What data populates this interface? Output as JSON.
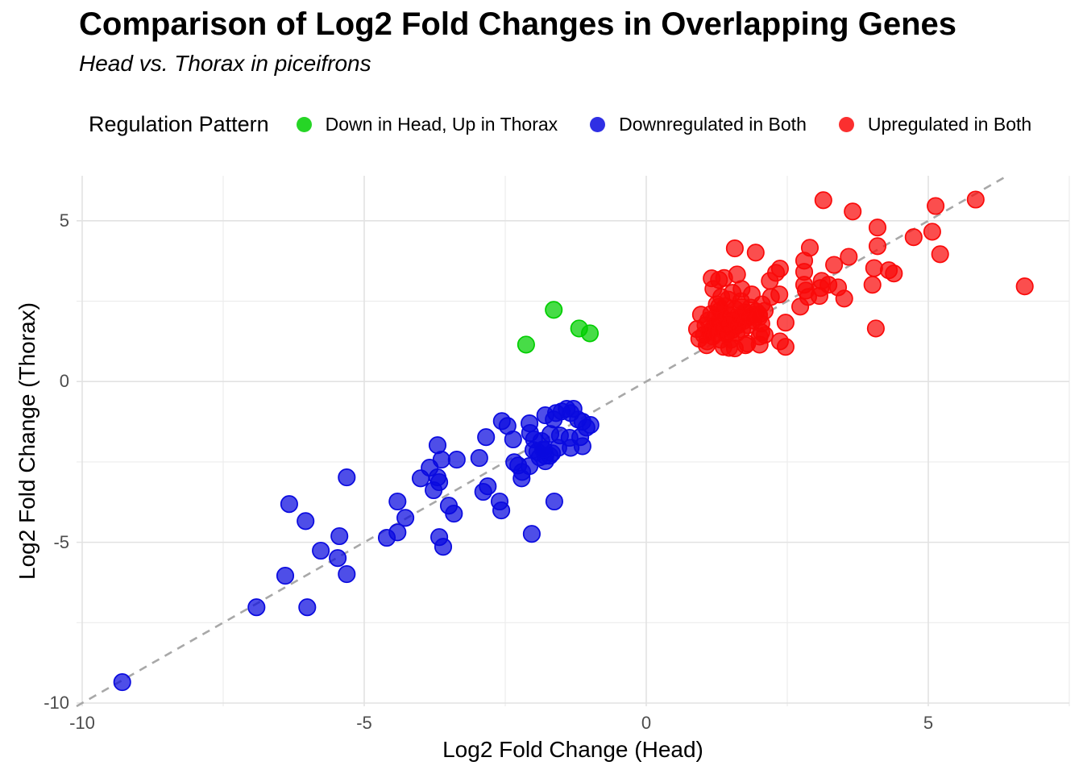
{
  "chart_data": {
    "type": "scatter",
    "title": "Comparison of Log2 Fold Changes in Overlapping Genes",
    "subtitle": "Head vs. Thorax in piceifrons",
    "xlabel": "Log2 Fold Change (Head)",
    "ylabel": "Log2 Fold Change (Thorax)",
    "legend_title": "Regulation Pattern",
    "legend_position": "top",
    "xlim": [
      -10.1,
      7.5
    ],
    "ylim": [
      -10.1,
      6.4
    ],
    "xticks": [
      -10,
      -5,
      0,
      5
    ],
    "yticks": [
      -10,
      -5,
      0,
      5
    ],
    "minor_xticks": [
      -7.5,
      -2.5,
      2.5,
      7.5
    ],
    "minor_yticks": [
      -7.5,
      -2.5,
      2.5
    ],
    "grid": true,
    "identity_line": {
      "style": "dashed",
      "color": "#a8a8a8"
    },
    "style": {
      "major_grid_color": "#e2e2e2",
      "minor_grid_color": "#ececec",
      "tick_label_color": "#4d4d4d",
      "background": "#ffffff",
      "point_radius": 10.2,
      "point_fill_opacity": 0.72
    },
    "series": [
      {
        "name": "Down in Head, Up in Thorax",
        "color": "#00ce00",
        "points": [
          [
            -1.64,
            2.23
          ],
          [
            -2.13,
            1.15
          ],
          [
            -1.19,
            1.65
          ],
          [
            -1.0,
            1.5
          ]
        ]
      },
      {
        "name": "Downregulated in Both",
        "color": "#0a0adf",
        "points": [
          [
            -9.29,
            -9.35
          ],
          [
            -6.91,
            -7.02
          ],
          [
            -6.4,
            -6.04
          ],
          [
            -6.01,
            -7.02
          ],
          [
            -5.31,
            -5.99
          ],
          [
            -5.31,
            -2.98
          ],
          [
            -6.33,
            -3.81
          ],
          [
            -6.04,
            -4.34
          ],
          [
            -5.44,
            -4.81
          ],
          [
            -5.77,
            -5.26
          ],
          [
            -5.47,
            -5.49
          ],
          [
            -4.41,
            -3.73
          ],
          [
            -4.27,
            -4.24
          ],
          [
            -4.41,
            -4.69
          ],
          [
            -4.6,
            -4.86
          ],
          [
            -4.0,
            -3.01
          ],
          [
            -3.84,
            -2.68
          ],
          [
            -3.7,
            -2.98
          ],
          [
            -3.77,
            -3.38
          ],
          [
            -3.5,
            -3.86
          ],
          [
            -3.41,
            -4.11
          ],
          [
            -3.67,
            -4.84
          ],
          [
            -3.6,
            -5.14
          ],
          [
            -3.7,
            -1.98
          ],
          [
            -3.63,
            -2.43
          ],
          [
            -3.36,
            -2.43
          ],
          [
            -3.67,
            -3.13
          ],
          [
            -2.96,
            -2.38
          ],
          [
            -2.84,
            -1.73
          ],
          [
            -2.81,
            -3.26
          ],
          [
            -2.34,
            -2.51
          ],
          [
            -2.07,
            -2.63
          ],
          [
            -2.21,
            -3.01
          ],
          [
            -1.79,
            -2.31
          ],
          [
            -1.67,
            -2.23
          ],
          [
            -2.89,
            -3.43
          ],
          [
            -2.6,
            -3.73
          ],
          [
            -2.57,
            -4.01
          ],
          [
            -1.63,
            -3.73
          ],
          [
            -2.03,
            -4.74
          ],
          [
            -2.56,
            -1.23
          ],
          [
            -2.46,
            -1.38
          ],
          [
            -2.36,
            -1.8
          ],
          [
            -2.27,
            -2.61
          ],
          [
            -2.07,
            -1.3
          ],
          [
            -2.06,
            -1.6
          ],
          [
            -1.99,
            -1.8
          ],
          [
            -2.2,
            -2.81
          ],
          [
            -1.93,
            -2.18
          ],
          [
            -1.81,
            -2.13
          ],
          [
            -1.79,
            -1.05
          ],
          [
            -1.64,
            -1.18
          ],
          [
            -1.6,
            -0.98
          ],
          [
            -1.5,
            -0.93
          ],
          [
            -1.41,
            -0.85
          ],
          [
            -1.34,
            -0.98
          ],
          [
            -1.29,
            -0.85
          ],
          [
            -1.21,
            -1.18
          ],
          [
            -1.13,
            -1.25
          ],
          [
            -1.06,
            -1.43
          ],
          [
            -0.99,
            -1.35
          ],
          [
            -1.17,
            -1.73
          ],
          [
            -1.36,
            -1.75
          ],
          [
            -1.53,
            -1.68
          ],
          [
            -1.7,
            -1.63
          ],
          [
            -1.86,
            -1.85
          ],
          [
            -1.56,
            -2.06
          ],
          [
            -1.34,
            -2.06
          ],
          [
            -1.13,
            -2.01
          ],
          [
            -1.89,
            -2.36
          ],
          [
            -1.71,
            -2.31
          ],
          [
            -1.79,
            -2.48
          ],
          [
            -2.0,
            -2.13
          ],
          [
            -1.83,
            -2.11
          ]
        ]
      },
      {
        "name": "Upregulated in Both",
        "color": "#fa0a0a",
        "points": [
          [
            3.14,
            5.64
          ],
          [
            3.66,
            5.29
          ],
          [
            5.13,
            5.46
          ],
          [
            5.84,
            5.66
          ],
          [
            4.1,
            4.79
          ],
          [
            4.74,
            4.49
          ],
          [
            5.07,
            4.66
          ],
          [
            4.1,
            4.21
          ],
          [
            5.21,
            3.96
          ],
          [
            6.71,
            2.96
          ],
          [
            2.9,
            4.16
          ],
          [
            2.8,
            3.76
          ],
          [
            3.33,
            3.63
          ],
          [
            3.59,
            3.88
          ],
          [
            4.04,
            3.53
          ],
          [
            4.3,
            3.46
          ],
          [
            4.39,
            3.36
          ],
          [
            4.01,
            3.01
          ],
          [
            3.23,
            3.01
          ],
          [
            3.51,
            2.58
          ],
          [
            4.07,
            1.65
          ],
          [
            1.57,
            4.14
          ],
          [
            1.94,
            4.01
          ],
          [
            1.16,
            3.21
          ],
          [
            1.29,
            3.16
          ],
          [
            1.38,
            3.22
          ],
          [
            1.61,
            3.33
          ],
          [
            2.3,
            3.38
          ],
          [
            2.37,
            3.51
          ],
          [
            2.73,
            2.33
          ],
          [
            2.87,
            2.63
          ],
          [
            3.07,
            2.66
          ],
          [
            2.47,
            1.83
          ],
          [
            2.47,
            1.08
          ],
          [
            2.01,
            1.4
          ],
          [
            2.01,
            1.15
          ],
          [
            2.21,
            2.63
          ],
          [
            2.36,
            2.71
          ],
          [
            2.04,
            1.53
          ],
          [
            2.37,
            1.25
          ],
          [
            1.37,
            1.08
          ],
          [
            1.57,
            1.03
          ],
          [
            1.76,
            1.13
          ],
          [
            0.97,
            2.08
          ],
          [
            0.9,
            1.63
          ],
          [
            0.94,
            1.33
          ],
          [
            1.07,
            1.13
          ],
          [
            1.29,
            2.33
          ],
          [
            1.33,
            2.63
          ],
          [
            1.53,
            2.76
          ],
          [
            1.69,
            2.31
          ],
          [
            1.9,
            2.08
          ],
          [
            2.04,
            1.8
          ],
          [
            2.1,
            1.45
          ],
          [
            1.79,
            1.18
          ],
          [
            1.47,
            1.05
          ],
          [
            1.19,
            2.88
          ],
          [
            2.8,
            3.41
          ],
          [
            2.8,
            3.01
          ],
          [
            3.09,
            2.91
          ],
          [
            3.4,
            2.93
          ],
          [
            1.69,
            2.88
          ],
          [
            1.87,
            2.71
          ],
          [
            2.19,
            3.13
          ],
          [
            2.83,
            2.83
          ],
          [
            3.11,
            3.13
          ],
          [
            2.0,
            2.08
          ],
          [
            1.02,
            1.45
          ],
          [
            1.05,
            1.75
          ],
          [
            1.08,
            1.25
          ],
          [
            1.1,
            1.9
          ],
          [
            1.12,
            1.55
          ],
          [
            1.15,
            2.1
          ],
          [
            1.18,
            1.4
          ],
          [
            1.2,
            1.7
          ],
          [
            1.22,
            2.0
          ],
          [
            1.25,
            1.5
          ],
          [
            1.28,
            1.85
          ],
          [
            1.3,
            2.2
          ],
          [
            1.32,
            1.3
          ],
          [
            1.35,
            1.62
          ],
          [
            1.38,
            1.95
          ],
          [
            1.4,
            2.35
          ],
          [
            1.42,
            1.48
          ],
          [
            1.45,
            1.78
          ],
          [
            1.48,
            2.05
          ],
          [
            1.5,
            1.3
          ],
          [
            1.52,
            1.6
          ],
          [
            1.55,
            1.9
          ],
          [
            1.58,
            2.25
          ],
          [
            1.6,
            1.5
          ],
          [
            1.62,
            1.75
          ],
          [
            1.65,
            2.0
          ],
          [
            1.68,
            2.5
          ],
          [
            1.7,
            1.62
          ],
          [
            1.72,
            1.88
          ],
          [
            1.75,
            2.15
          ],
          [
            1.8,
            1.75
          ],
          [
            1.82,
            2.0
          ],
          [
            1.85,
            2.3
          ],
          [
            1.9,
            1.9
          ],
          [
            1.95,
            2.18
          ],
          [
            2.0,
            2.0
          ],
          [
            2.05,
            2.4
          ],
          [
            2.1,
            2.2
          ],
          [
            1.25,
            2.4
          ],
          [
            1.45,
            2.55
          ]
        ]
      }
    ]
  }
}
